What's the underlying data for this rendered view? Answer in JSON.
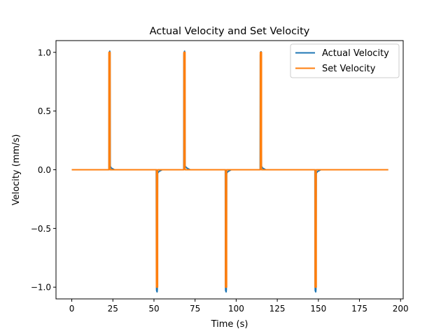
{
  "chart_data": {
    "type": "line",
    "title": "Actual Velocity and Set Velocity",
    "xlabel": "Time (s)",
    "ylabel": "Velocity (mm/s)",
    "xlim": [
      -9.6,
      201.6
    ],
    "ylim": [
      -1.1,
      1.1
    ],
    "xticks": [
      0,
      25,
      50,
      75,
      100,
      125,
      150,
      175,
      200
    ],
    "xtick_labels": [
      "0",
      "25",
      "50",
      "75",
      "100",
      "125",
      "150",
      "175",
      "200"
    ],
    "yticks": [
      -1.0,
      -0.5,
      0.0,
      0.5,
      1.0
    ],
    "ytick_labels": [
      "−1.0",
      "−0.5",
      "0.0",
      "0.5",
      "1.0"
    ],
    "grid": false,
    "legend_position": "top-right",
    "series": [
      {
        "name": "Actual Velocity",
        "color": "#1f77b4",
        "x": [
          0,
          22.6,
          22.7,
          22.9,
          23.1,
          23.25,
          23.4,
          24,
          26,
          51.4,
          51.5,
          51.6,
          51.9,
          52.0,
          52.2,
          53,
          55,
          68.1,
          68.2,
          68.4,
          68.6,
          68.75,
          68.9,
          70,
          72,
          93.4,
          93.5,
          93.6,
          93.9,
          94.0,
          94.2,
          95,
          97,
          114.6,
          114.7,
          114.9,
          115.1,
          115.25,
          115.4,
          116,
          118,
          147.9,
          148.0,
          148.1,
          148.4,
          148.5,
          148.7,
          149.5,
          151.5,
          192.5
        ],
        "y": [
          0,
          0,
          0.98,
          1.0,
          1.01,
          1.0,
          0.03,
          0.015,
          0,
          0,
          -0.98,
          -1.03,
          -1.04,
          -1.02,
          -0.03,
          -0.015,
          0,
          0,
          0.99,
          1.0,
          1.01,
          1.0,
          0.03,
          0.015,
          0,
          0,
          -0.98,
          -1.03,
          -1.04,
          -1.02,
          -0.03,
          -0.015,
          0,
          0,
          0.98,
          1.0,
          1.005,
          1.0,
          0.03,
          0.015,
          0,
          0,
          -0.98,
          -1.03,
          -1.04,
          -1.02,
          -0.03,
          -0.015,
          0,
          0
        ]
      },
      {
        "name": "Set Velocity",
        "color": "#ff7f0e",
        "x": [
          0,
          22.6,
          22.6,
          23.3,
          23.3,
          51.5,
          51.5,
          52.2,
          52.2,
          68.2,
          68.2,
          68.9,
          68.9,
          93.5,
          93.5,
          94.2,
          94.2,
          114.7,
          114.7,
          115.4,
          115.4,
          148.0,
          148.0,
          148.7,
          148.7,
          192.5
        ],
        "y": [
          0,
          0,
          1.0,
          1.0,
          0,
          0,
          -1.0,
          -1.0,
          0,
          0,
          1.0,
          1.0,
          0,
          0,
          -1.0,
          -1.0,
          0,
          0,
          1.0,
          1.0,
          0,
          0,
          -1.0,
          -1.0,
          0,
          0
        ]
      }
    ]
  }
}
